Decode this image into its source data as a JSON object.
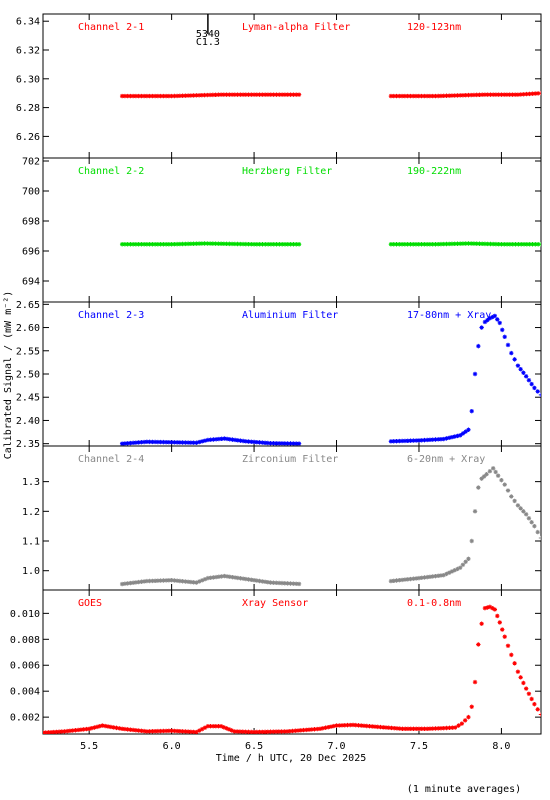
{
  "chart_data": {
    "type": "scatter",
    "xlabel": "Time / h UTC, 20 Dec 2025",
    "ylabel": "Calibrated Signal / (mW m⁻²)",
    "xlim": [
      5.22,
      8.24
    ],
    "xticks": [
      "5.5",
      "6.0",
      "6.5",
      "7.0",
      "7.5",
      "8.0"
    ],
    "footnote": "(1 minute averages)",
    "flare_annotation": {
      "x": 6.22,
      "label_top": "5340",
      "label_bottom": "C1.3"
    },
    "panels": [
      {
        "id": "channel-2-1",
        "labels": [
          "Channel 2-1",
          "Lyman-alpha Filter",
          "120-123nm"
        ],
        "color": "#ff0000",
        "ylim": [
          6.245,
          6.345
        ],
        "yticks": [
          "6.26",
          "6.28",
          "6.30",
          "6.32",
          "6.34"
        ],
        "points": [
          [
            5.7,
            6.288
          ],
          [
            6.0,
            6.288
          ],
          [
            6.3,
            6.289
          ],
          [
            6.55,
            6.289
          ],
          [
            6.79,
            6.289
          ],
          [
            7.33,
            6.288
          ],
          [
            7.6,
            6.288
          ],
          [
            7.9,
            6.289
          ],
          [
            8.1,
            6.289
          ],
          [
            8.24,
            6.29
          ]
        ],
        "gaps": [
          [
            6.8,
            7.32
          ]
        ]
      },
      {
        "id": "channel-2-2",
        "labels": [
          "Channel 2-2",
          "Herzberg Filter",
          "190-222nm"
        ],
        "color": "#00dd00",
        "ylim": [
          692.6,
          702.2
        ],
        "yticks": [
          "694",
          "696",
          "698",
          "700",
          "702"
        ],
        "points": [
          [
            5.7,
            696.45
          ],
          [
            6.0,
            696.45
          ],
          [
            6.2,
            696.5
          ],
          [
            6.5,
            696.45
          ],
          [
            6.79,
            696.45
          ],
          [
            7.33,
            696.45
          ],
          [
            7.6,
            696.45
          ],
          [
            7.8,
            696.5
          ],
          [
            8.0,
            696.45
          ],
          [
            8.24,
            696.45
          ]
        ],
        "gaps": [
          [
            6.8,
            7.32
          ]
        ]
      },
      {
        "id": "channel-2-3",
        "labels": [
          "Channel 2-3",
          "Aluminium Filter",
          "17-80nm + Xray"
        ],
        "color": "#0000ff",
        "ylim": [
          2.345,
          2.655
        ],
        "yticks": [
          "2.35",
          "2.40",
          "2.45",
          "2.50",
          "2.55",
          "2.60",
          "2.65"
        ],
        "points": [
          [
            5.7,
            2.35
          ],
          [
            5.85,
            2.354
          ],
          [
            6.0,
            2.353
          ],
          [
            6.15,
            2.352
          ],
          [
            6.22,
            2.358
          ],
          [
            6.32,
            2.361
          ],
          [
            6.45,
            2.355
          ],
          [
            6.6,
            2.351
          ],
          [
            6.79,
            2.35
          ],
          [
            7.33,
            2.355
          ],
          [
            7.5,
            2.357
          ],
          [
            7.65,
            2.36
          ],
          [
            7.75,
            2.368
          ],
          [
            7.8,
            2.38
          ],
          [
            7.82,
            2.42
          ],
          [
            7.84,
            2.5
          ],
          [
            7.86,
            2.56
          ],
          [
            7.88,
            2.6
          ],
          [
            7.9,
            2.612
          ],
          [
            7.93,
            2.62
          ],
          [
            7.96,
            2.625
          ],
          [
            7.99,
            2.61
          ],
          [
            8.02,
            2.58
          ],
          [
            8.06,
            2.545
          ],
          [
            8.1,
            2.518
          ],
          [
            8.15,
            2.495
          ],
          [
            8.2,
            2.47
          ],
          [
            8.24,
            2.455
          ]
        ],
        "gaps": [
          [
            6.8,
            7.32
          ]
        ]
      },
      {
        "id": "channel-2-4",
        "labels": [
          "Channel 2-4",
          "Zirconium Filter",
          "6-20nm + Xray"
        ],
        "color": "#888888",
        "ylim": [
          0.935,
          1.42
        ],
        "yticks": [
          "1.0",
          "1.1",
          "1.2",
          "1.3"
        ],
        "points": [
          [
            5.7,
            0.955
          ],
          [
            5.85,
            0.965
          ],
          [
            6.0,
            0.968
          ],
          [
            6.15,
            0.96
          ],
          [
            6.22,
            0.975
          ],
          [
            6.32,
            0.982
          ],
          [
            6.45,
            0.972
          ],
          [
            6.6,
            0.96
          ],
          [
            6.79,
            0.955
          ],
          [
            7.33,
            0.965
          ],
          [
            7.5,
            0.975
          ],
          [
            7.65,
            0.985
          ],
          [
            7.75,
            1.01
          ],
          [
            7.8,
            1.04
          ],
          [
            7.82,
            1.1
          ],
          [
            7.84,
            1.2
          ],
          [
            7.86,
            1.28
          ],
          [
            7.88,
            1.31
          ],
          [
            7.91,
            1.325
          ],
          [
            7.95,
            1.345
          ],
          [
            7.98,
            1.32
          ],
          [
            8.02,
            1.29
          ],
          [
            8.06,
            1.25
          ],
          [
            8.1,
            1.22
          ],
          [
            8.15,
            1.19
          ],
          [
            8.2,
            1.15
          ],
          [
            8.24,
            1.11
          ]
        ],
        "gaps": [
          [
            6.8,
            7.32
          ]
        ]
      },
      {
        "id": "goes",
        "labels": [
          "GOES",
          "Xray Sensor",
          "0.1-0.8nm"
        ],
        "color": "#ff0000",
        "ylim": [
          0.0007,
          0.0118
        ],
        "yticks": [
          "0.002",
          "0.004",
          "0.006",
          "0.008",
          "0.010"
        ],
        "points": [
          [
            5.22,
            0.0008
          ],
          [
            5.35,
            0.0009
          ],
          [
            5.5,
            0.0011
          ],
          [
            5.58,
            0.00135
          ],
          [
            5.7,
            0.0011
          ],
          [
            5.85,
            0.0009
          ],
          [
            6.0,
            0.00095
          ],
          [
            6.15,
            0.00085
          ],
          [
            6.22,
            0.0013
          ],
          [
            6.3,
            0.0013
          ],
          [
            6.38,
            0.0009
          ],
          [
            6.5,
            0.00085
          ],
          [
            6.7,
            0.0009
          ],
          [
            6.9,
            0.0011
          ],
          [
            7.0,
            0.00135
          ],
          [
            7.1,
            0.0014
          ],
          [
            7.25,
            0.00125
          ],
          [
            7.4,
            0.0011
          ],
          [
            7.55,
            0.0011
          ],
          [
            7.65,
            0.00115
          ],
          [
            7.72,
            0.0012
          ],
          [
            7.76,
            0.0015
          ],
          [
            7.8,
            0.002
          ],
          [
            7.82,
            0.0028
          ],
          [
            7.84,
            0.0047
          ],
          [
            7.86,
            0.0076
          ],
          [
            7.88,
            0.0092
          ],
          [
            7.9,
            0.0104
          ],
          [
            7.93,
            0.0105
          ],
          [
            7.96,
            0.0103
          ],
          [
            7.99,
            0.0093
          ],
          [
            8.02,
            0.0082
          ],
          [
            8.06,
            0.0068
          ],
          [
            8.1,
            0.0055
          ],
          [
            8.15,
            0.0042
          ],
          [
            8.2,
            0.003
          ],
          [
            8.24,
            0.0022
          ]
        ],
        "gaps": []
      }
    ]
  }
}
